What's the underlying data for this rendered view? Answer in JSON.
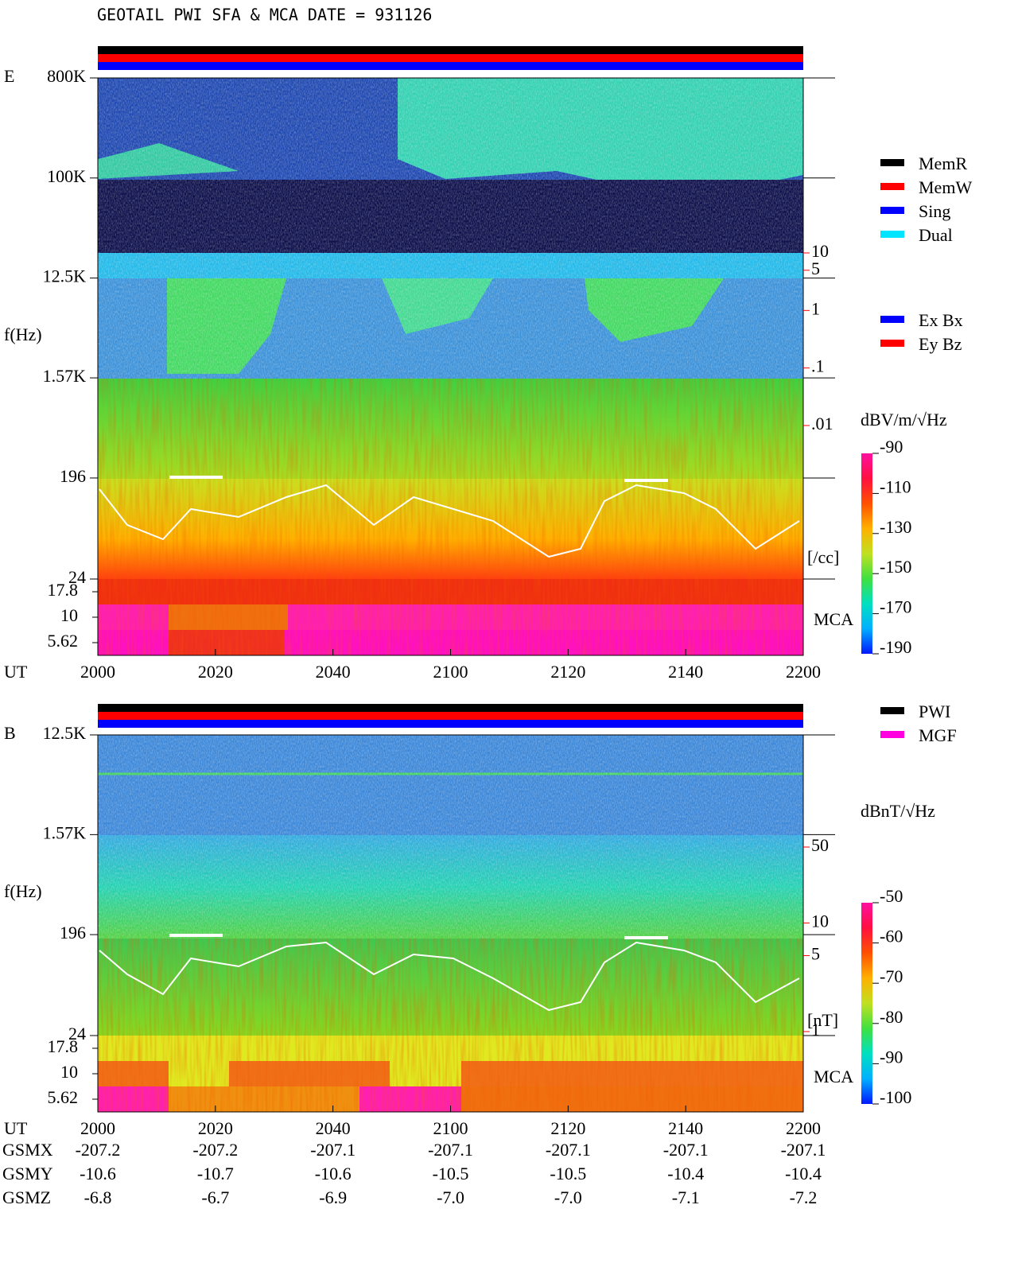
{
  "title": "GEOTAIL  PWI SFA & MCA   DATE = 931126",
  "chart_data": [
    {
      "type": "spectrogram",
      "panel": "E",
      "ylabel": "f(Hz)",
      "xlabel": "UT",
      "ylim": [
        24,
        800000
      ],
      "log_y": true,
      "yticks": [
        {
          "value": 800000,
          "label": "800K"
        },
        {
          "value": 100000,
          "label": "100K"
        },
        {
          "value": 12500,
          "label": "12.5K"
        },
        {
          "value": 1570,
          "label": "1.57K"
        },
        196,
        24
      ],
      "mca_ticks": [
        17.8,
        10,
        5.62
      ],
      "mca_label": "MCA",
      "categories": [
        "2000",
        "2020",
        "2040",
        "2100",
        "2120",
        "2140",
        "2200"
      ],
      "density_lim": [
        0.01,
        10
      ],
      "density_unit": "[/cc]",
      "density_color": "#ff0000",
      "density_ticks": [
        10,
        5,
        1,
        {
          "value": 0.1,
          "label": ".1"
        },
        {
          "value": 0.01,
          "label": ".01"
        }
      ],
      "status_colors": [
        "#000000",
        "#ff0000",
        "#0000ff"
      ],
      "legend": [
        {
          "name": "MemR",
          "color": "#000000"
        },
        {
          "name": "MemW",
          "color": "#ff0000"
        },
        {
          "name": "Sing",
          "color": "#0000ff"
        },
        {
          "name": "Dual",
          "color": "#00e5ff"
        }
      ],
      "legend2": [
        {
          "name": "Ex Bx",
          "color": "#0000ff"
        },
        {
          "name": "Ey Bz",
          "color": "#ff0000"
        }
      ],
      "colorbar": {
        "label": "dBV/m/√Hz",
        "lim": [
          -190,
          -90
        ],
        "ticks": [
          -90,
          -110,
          -130,
          -150,
          -170,
          -190
        ],
        "colors": [
          "#0018ff",
          "#00b0ff",
          "#00e0c0",
          "#40e040",
          "#c0e020",
          "#ffb000",
          "#ff5000",
          "#ff1040",
          "#ff10a0"
        ]
      }
    },
    {
      "type": "spectrogram",
      "panel": "B",
      "ylabel": "f(Hz)",
      "xlabel": "UT",
      "ylim": [
        24,
        12500
      ],
      "log_y": true,
      "yticks": [
        {
          "value": 12500,
          "label": "12.5K"
        },
        {
          "value": 1570,
          "label": "1.57K"
        },
        196,
        24
      ],
      "mca_ticks": [
        17.8,
        10,
        5.62
      ],
      "mca_label": "MCA",
      "categories": [
        "2000",
        "2020",
        "2040",
        "2100",
        "2120",
        "2140",
        "2200"
      ],
      "density_lim": [
        1,
        50
      ],
      "density_unit": "[nT]",
      "density_color": "#ff0000",
      "density_ticks": [
        50,
        10,
        5,
        1
      ],
      "status_colors": [
        "#000000",
        "#ff0000",
        "#0000ff"
      ],
      "legend": [
        {
          "name": "PWI",
          "color": "#000000"
        },
        {
          "name": "MGF",
          "color": "#ff00e0"
        }
      ],
      "colorbar": {
        "label": "dBnT/√Hz",
        "lim": [
          -100,
          -50
        ],
        "ticks": [
          -50,
          -60,
          -70,
          -80,
          -90,
          -100
        ],
        "colors": [
          "#0018ff",
          "#00b0ff",
          "#00e0c0",
          "#40e040",
          "#c0e020",
          "#ffb000",
          "#ff5000",
          "#ff1040",
          "#ff10a0"
        ]
      }
    }
  ],
  "orbit": {
    "rows": [
      {
        "name": "GSMX",
        "values": [
          "-207.2",
          "-207.2",
          "-207.1",
          "-207.1",
          "-207.1",
          "-207.1",
          "-207.1"
        ]
      },
      {
        "name": "GSMY",
        "values": [
          "-10.6",
          "-10.7",
          "-10.6",
          "-10.5",
          "-10.5",
          "-10.4",
          "-10.4"
        ]
      },
      {
        "name": "GSMZ",
        "values": [
          "-6.8",
          "-6.7",
          "-6.9",
          "-7.0",
          "-7.0",
          "-7.1",
          "-7.2"
        ]
      }
    ]
  }
}
